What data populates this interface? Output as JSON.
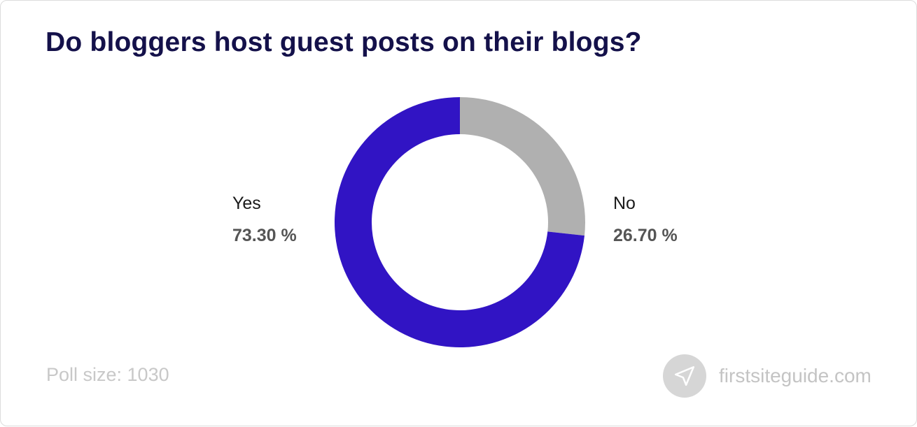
{
  "title": "Do bloggers host guest posts on their blogs?",
  "footer": {
    "poll_size": "Poll size: 1030",
    "brand": "firstsiteguide.com",
    "brand_icon": "paper-plane-icon"
  },
  "colors": {
    "title": "#14114a",
    "yes": "#3114c4",
    "no": "#b0b0b0"
  },
  "chart_data": {
    "type": "pie",
    "style": "donut",
    "title": "Do bloggers host guest posts on their blogs?",
    "categories": [
      "Yes",
      "No"
    ],
    "values": [
      73.3,
      26.7
    ],
    "value_labels": [
      "73.30 %",
      "26.70 %"
    ],
    "colors": [
      "#3114c4",
      "#b0b0b0"
    ]
  }
}
